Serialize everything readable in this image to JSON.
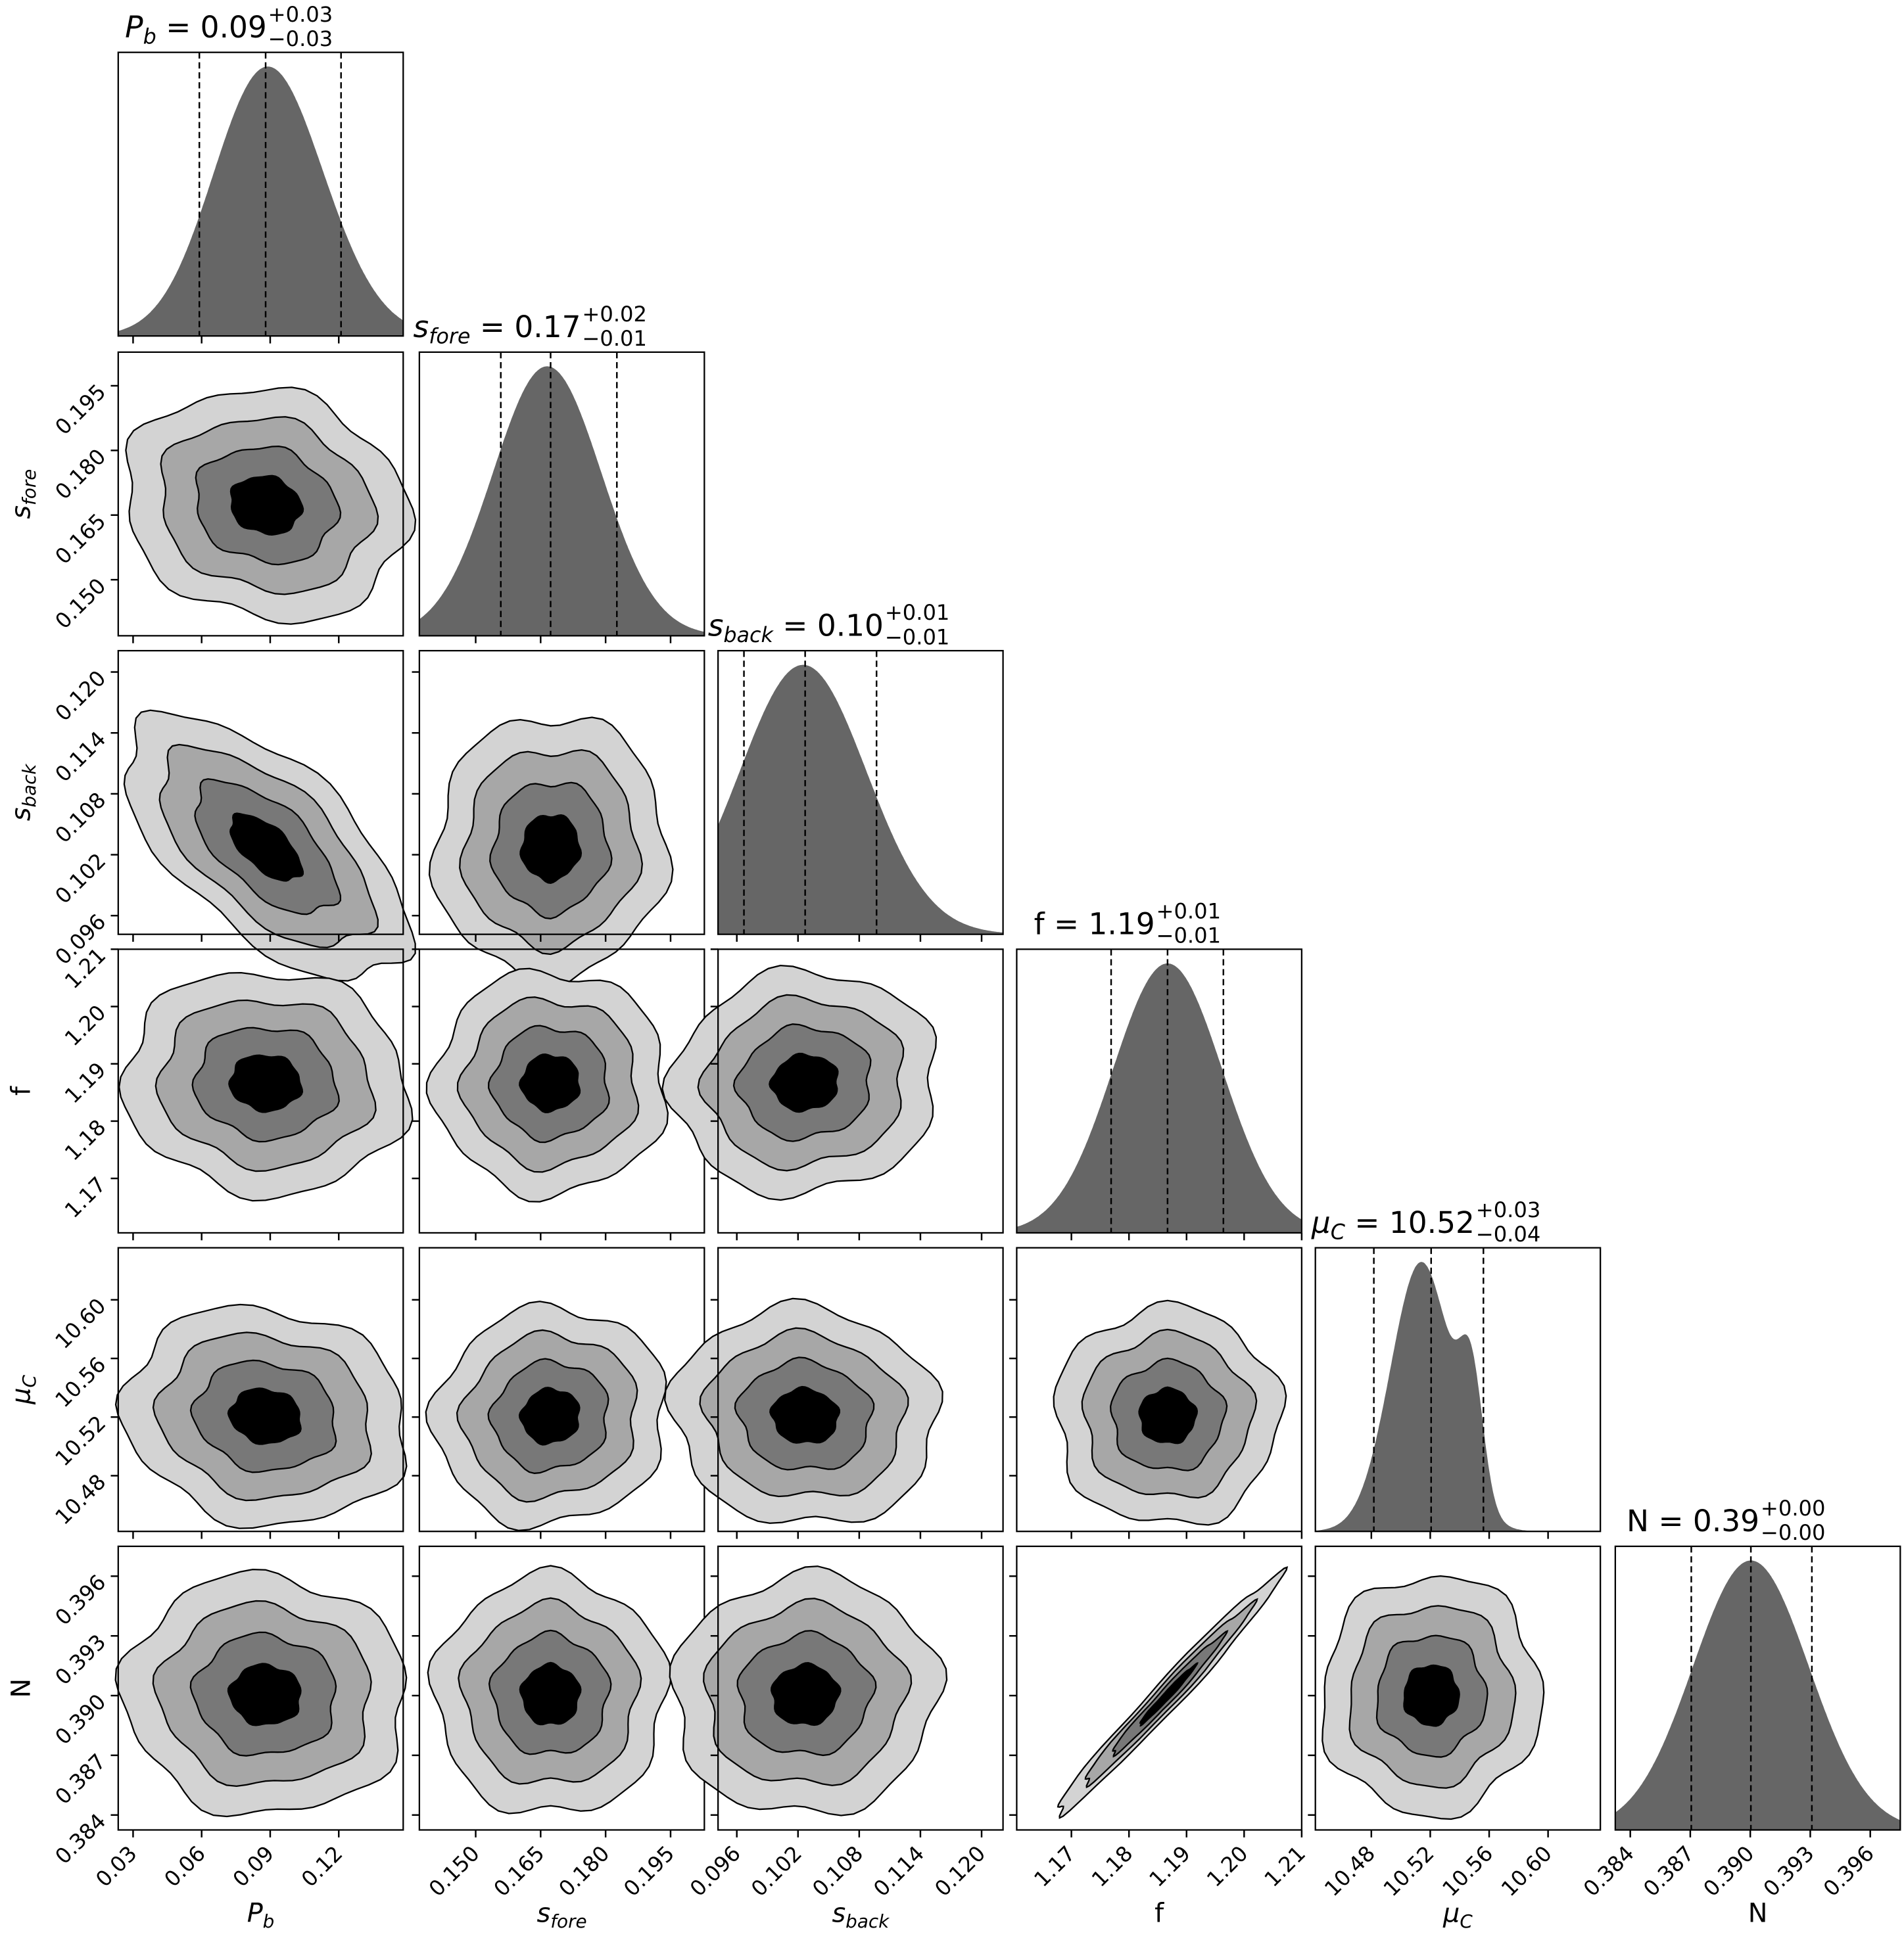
{
  "chart_data": {
    "type": "corner",
    "title": "",
    "params": [
      {
        "key": "Pb",
        "label_main": "P",
        "label_sub": "b",
        "italic": true,
        "title_value": "0.09",
        "title_plus": "+0.03",
        "title_minus": "−0.03",
        "range": [
          0.0235,
          0.1482
        ],
        "q16": 0.059,
        "q50": 0.088,
        "q84": 0.121,
        "components": [
          {
            "mu": 0.083,
            "sd": 0.022,
            "w": 1
          },
          {
            "mu": 0.097,
            "sd": 0.024,
            "w": 0.9
          }
        ],
        "ticks": [
          0.03,
          0.06,
          0.09,
          0.12
        ],
        "tick_labels": [
          "0.03",
          "0.06",
          "0.09",
          "0.12"
        ]
      },
      {
        "key": "sfore",
        "label_main": "s",
        "label_sub": "fore",
        "italic": true,
        "title_value": "0.17",
        "title_plus": "+0.02",
        "title_minus": "−0.01",
        "range": [
          0.137,
          0.2028
        ],
        "q16": 0.1558,
        "q50": 0.1673,
        "q84": 0.1826,
        "components": [
          {
            "mu": 0.1665,
            "sd": 0.0125,
            "w": 1
          }
        ],
        "ticks": [
          0.15,
          0.165,
          0.18,
          0.195
        ],
        "tick_labels": [
          "0.150",
          "0.165",
          "0.180",
          "0.195"
        ]
      },
      {
        "key": "sback",
        "label_main": "s",
        "label_sub": "back",
        "italic": true,
        "title_value": "0.10",
        "title_plus": "+0.01",
        "title_minus": "−0.01",
        "range": [
          0.09416,
          0.1221
        ],
        "q16": 0.0967,
        "q50": 0.1027,
        "q84": 0.1097,
        "components": [
          {
            "mu": 0.1025,
            "sd": 0.0062,
            "w": 1
          }
        ],
        "ticks": [
          0.096,
          0.102,
          0.108,
          0.114,
          0.12
        ],
        "tick_labels": [
          "0.096",
          "0.102",
          "0.108",
          "0.114",
          "0.120"
        ]
      },
      {
        "key": "f",
        "label_main": "f",
        "label_sub": "",
        "italic": false,
        "title_value": "1.19",
        "title_plus": "+0.01",
        "title_minus": "−0.01",
        "range": [
          1.1605,
          1.21
        ],
        "q16": 1.1769,
        "q50": 1.1867,
        "q84": 1.1964,
        "components": [
          {
            "mu": 1.1867,
            "sd": 0.0095,
            "w": 1
          }
        ],
        "ticks": [
          1.17,
          1.18,
          1.19,
          1.2,
          1.21
        ],
        "tick_labels": [
          "1.17",
          "1.18",
          "1.19",
          "1.20",
          "1.21"
        ]
      },
      {
        "key": "muC",
        "label_main": "μ",
        "label_sub": "C",
        "italic": true,
        "title_value": "10.52",
        "title_plus": "+0.03",
        "title_minus": "−0.04",
        "range": [
          10.442,
          10.6355
        ],
        "q16": 10.4817,
        "q50": 10.5206,
        "q84": 10.5561,
        "components": [
          {
            "mu": 10.514,
            "sd": 0.021,
            "w": 1
          },
          {
            "mu": 10.548,
            "sd": 0.008,
            "w": 0.42
          }
        ],
        "ticks": [
          10.48,
          10.52,
          10.56,
          10.6
        ],
        "tick_labels": [
          "10.48",
          "10.52",
          "10.56",
          "10.60"
        ]
      },
      {
        "key": "N",
        "label_main": "N",
        "label_sub": "",
        "italic": false,
        "title_value": "0.39",
        "title_plus": "+0.00",
        "title_minus": "−0.00",
        "range": [
          0.38325,
          0.3975
        ],
        "q16": 0.38705,
        "q50": 0.39003,
        "q84": 0.39308,
        "components": [
          {
            "mu": 0.39003,
            "sd": 0.0029,
            "w": 1
          }
        ],
        "ticks": [
          0.384,
          0.387,
          0.39,
          0.393,
          0.396
        ],
        "tick_labels": [
          "0.384",
          "0.387",
          "0.390",
          "0.393",
          "0.396"
        ]
      }
    ],
    "correlations": [
      {
        "x": "Pb",
        "y": "sfore",
        "rho": -0.12
      },
      {
        "x": "Pb",
        "y": "sback",
        "rho": -0.62
      },
      {
        "x": "sfore",
        "y": "sback",
        "rho": 0.02
      },
      {
        "x": "Pb",
        "y": "f",
        "rho": -0.05
      },
      {
        "x": "sfore",
        "y": "f",
        "rho": 0.0
      },
      {
        "x": "sback",
        "y": "f",
        "rho": 0.05
      },
      {
        "x": "Pb",
        "y": "muC",
        "rho": -0.1
      },
      {
        "x": "sfore",
        "y": "muC",
        "rho": 0.05
      },
      {
        "x": "sback",
        "y": "muC",
        "rho": -0.05
      },
      {
        "x": "f",
        "y": "muC",
        "rho": 0.0
      },
      {
        "x": "Pb",
        "y": "N",
        "rho": -0.03
      },
      {
        "x": "sfore",
        "y": "N",
        "rho": 0.0
      },
      {
        "x": "sback",
        "y": "N",
        "rho": 0.03
      },
      {
        "x": "f",
        "y": "N",
        "rho": 0.985
      },
      {
        "x": "muC",
        "y": "N",
        "rho": 0.02
      }
    ],
    "contour_levels_sigma": [
      2.0,
      1.5,
      1.0,
      0.5
    ],
    "colors": {
      "hist": "#666666",
      "levels": [
        "#d3d3d3",
        "#a7a7a7",
        "#787878",
        "#000000"
      ]
    }
  }
}
